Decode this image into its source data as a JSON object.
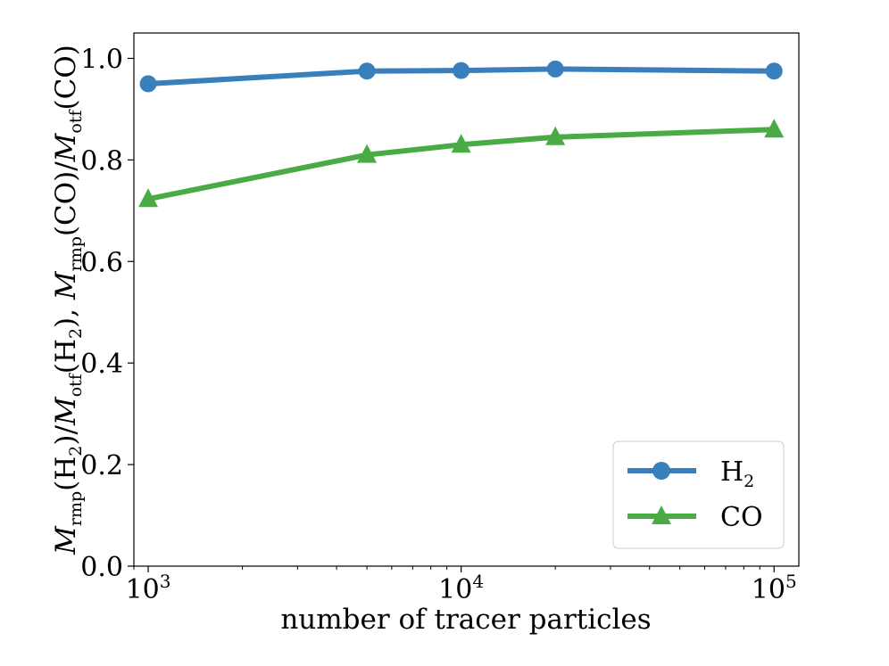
{
  "chart_data": {
    "type": "line",
    "xscale": "log",
    "xlim": [
      900,
      120000
    ],
    "ylim": [
      0.0,
      1.05
    ],
    "xlabel": "number of tracer particles",
    "ylabel": {
      "m1": "M",
      "s1": "rmp",
      "p1": "(H",
      "s2": "2",
      "p2": ")/",
      "m2": "M",
      "s3": "otf",
      "p3": "(H",
      "s4": "2",
      "p4": "), ",
      "m3": "M",
      "s5": "rmp",
      "p5": "(CO)/",
      "m4": "M",
      "s6": "otf",
      "p6": "(CO)"
    },
    "x_ticks": [
      {
        "value": 1000,
        "base": "10",
        "exp": "3"
      },
      {
        "value": 10000,
        "base": "10",
        "exp": "4"
      },
      {
        "value": 100000,
        "base": "10",
        "exp": "5"
      }
    ],
    "y_ticks": [
      "0.0",
      "0.2",
      "0.4",
      "0.6",
      "0.8",
      "1.0"
    ],
    "series": [
      {
        "name": "H2",
        "legend_main": "H",
        "legend_sub": "2",
        "color": "#3a7fbd",
        "marker": "circle",
        "x": [
          1000,
          5000,
          10000,
          20000,
          100000
        ],
        "y": [
          0.95,
          0.975,
          0.976,
          0.979,
          0.975
        ]
      },
      {
        "name": "CO",
        "legend_main": "CO",
        "legend_sub": "",
        "color": "#4aab46",
        "marker": "triangle",
        "x": [
          1000,
          5000,
          10000,
          20000,
          100000
        ],
        "y": [
          0.723,
          0.81,
          0.83,
          0.845,
          0.86
        ]
      }
    ],
    "legend_position": "lower right"
  }
}
